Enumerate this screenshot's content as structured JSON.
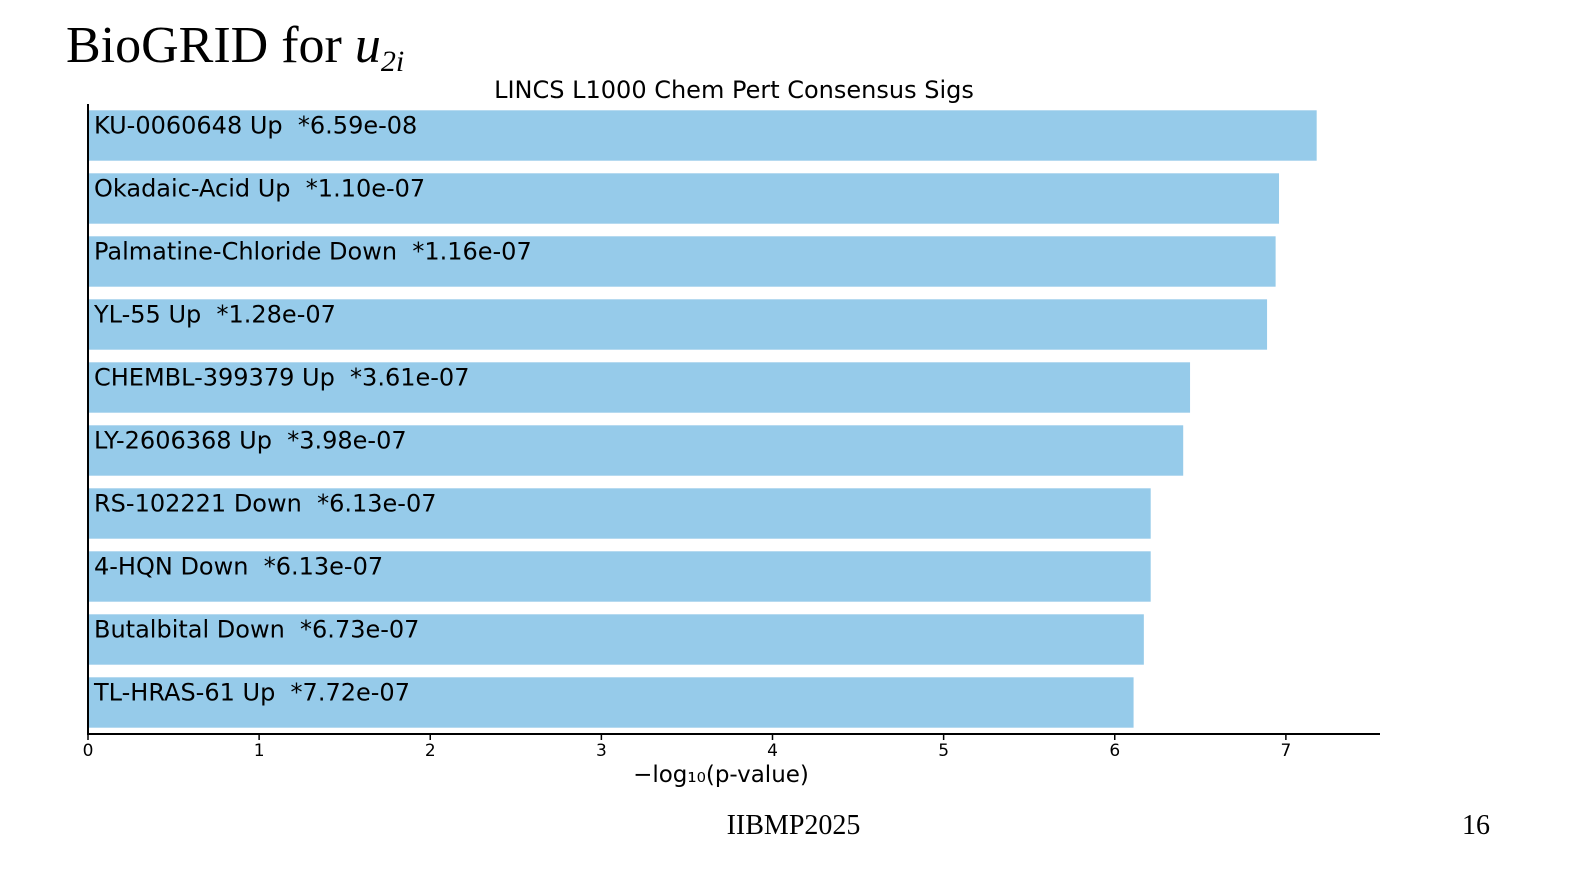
{
  "slide": {
    "title_prefix": "BioGRID for ",
    "title_var": "u",
    "title_sub": "2i",
    "footer_text": "IIBMP2025",
    "page_number": "16"
  },
  "chart_data": {
    "type": "bar",
    "orientation": "horizontal",
    "title": "LINCS L1000 Chem Pert Consensus Sigs",
    "xlabel": "−log₁₀(p-value)",
    "ylabel": "",
    "xlim": [
      0,
      7.55
    ],
    "xticks": [
      0,
      1,
      2,
      3,
      4,
      5,
      6,
      7
    ],
    "bar_color": "#96cbea",
    "grid": false,
    "bars": [
      {
        "label": "KU-0060648 Up  *6.59e-08",
        "value": 7.18
      },
      {
        "label": "Okadaic-Acid Up  *1.10e-07",
        "value": 6.96
      },
      {
        "label": "Palmatine-Chloride Down  *1.16e-07",
        "value": 6.94
      },
      {
        "label": "YL-55 Up  *1.28e-07",
        "value": 6.89
      },
      {
        "label": "CHEMBL-399379 Up  *3.61e-07",
        "value": 6.44
      },
      {
        "label": "LY-2606368 Up  *3.98e-07",
        "value": 6.4
      },
      {
        "label": "RS-102221 Down  *6.13e-07",
        "value": 6.21
      },
      {
        "label": "4-HQN Down  *6.13e-07",
        "value": 6.21
      },
      {
        "label": "Butalbital Down  *6.73e-07",
        "value": 6.17
      },
      {
        "label": "TL-HRAS-61 Up  *7.72e-07",
        "value": 6.11
      }
    ]
  }
}
